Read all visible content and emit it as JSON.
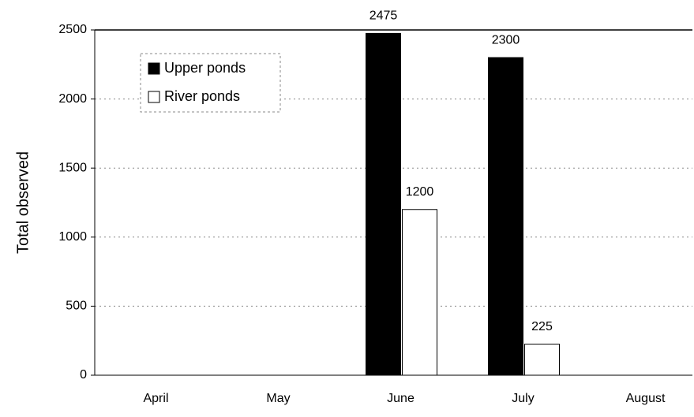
{
  "chart_data": {
    "type": "bar",
    "y_label": "Total observed",
    "categories": [
      "April",
      "May",
      "June",
      "July",
      "August"
    ],
    "series": [
      {
        "name": "Upper ponds",
        "color": "#000000",
        "values": [
          null,
          null,
          2475,
          2300,
          null
        ]
      },
      {
        "name": "River ponds",
        "color": "#ffffff",
        "values": [
          null,
          null,
          1200,
          225,
          null
        ]
      }
    ],
    "ylim": [
      0,
      2500
    ],
    "yticks": [
      0,
      500,
      1000,
      1500,
      2000,
      2500
    ],
    "grid": true,
    "legend": "upper left"
  }
}
